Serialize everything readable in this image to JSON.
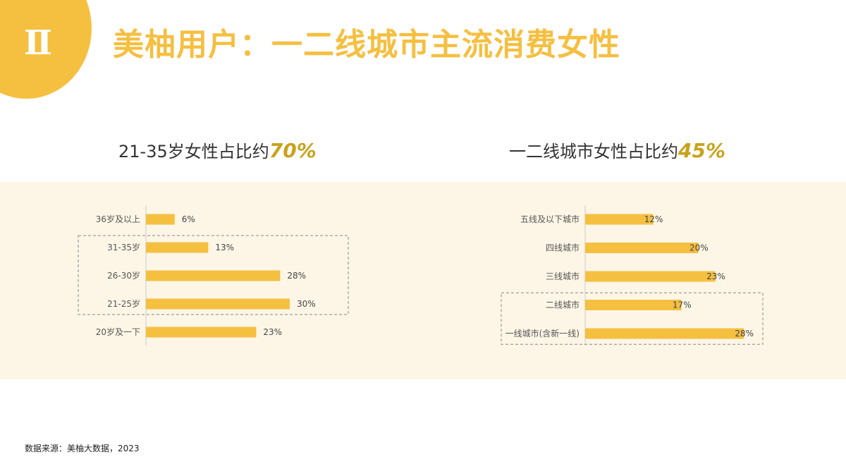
{
  "badge": {
    "numeral": "Ⅱ"
  },
  "title": "美柚用户：一二线城市主流消费女性",
  "left_panel": {
    "heading_prefix": "21-35岁女性占比约",
    "heading_highlight": "70%"
  },
  "right_panel": {
    "heading_prefix": "一二线城市女性占比约",
    "heading_highlight": "45%"
  },
  "colors": {
    "bar": "#F5BF40",
    "accent_text": "#C9A21B",
    "band": "#FDF6E6"
  },
  "chart_data": [
    {
      "type": "bar",
      "orientation": "horizontal",
      "categories": [
        "36岁及以上",
        "31-35岁",
        "26-30岁",
        "21-25岁",
        "20岁及一下"
      ],
      "values": [
        6,
        13,
        28,
        30,
        23
      ],
      "value_labels": [
        "6%",
        "13%",
        "28%",
        "30%",
        "23%"
      ],
      "unit": "%",
      "xlim": [
        0,
        30
      ],
      "grid": false,
      "highlighted_categories": [
        "31-35岁",
        "26-30岁",
        "21-25岁"
      ]
    },
    {
      "type": "bar",
      "orientation": "horizontal",
      "categories": [
        "五线及以下城市",
        "四线城市",
        "三线城市",
        "二线城市",
        "一线城市(含新一线)"
      ],
      "values": [
        12,
        20,
        23,
        17,
        28
      ],
      "value_labels": [
        "12%",
        "20%",
        "23%",
        "17%",
        "28%"
      ],
      "unit": "%",
      "xlim": [
        0,
        28
      ],
      "grid": false,
      "highlighted_categories": [
        "二线城市",
        "一线城市(含新一线)"
      ]
    }
  ],
  "source": "数据来源：美柚大数据，2023"
}
